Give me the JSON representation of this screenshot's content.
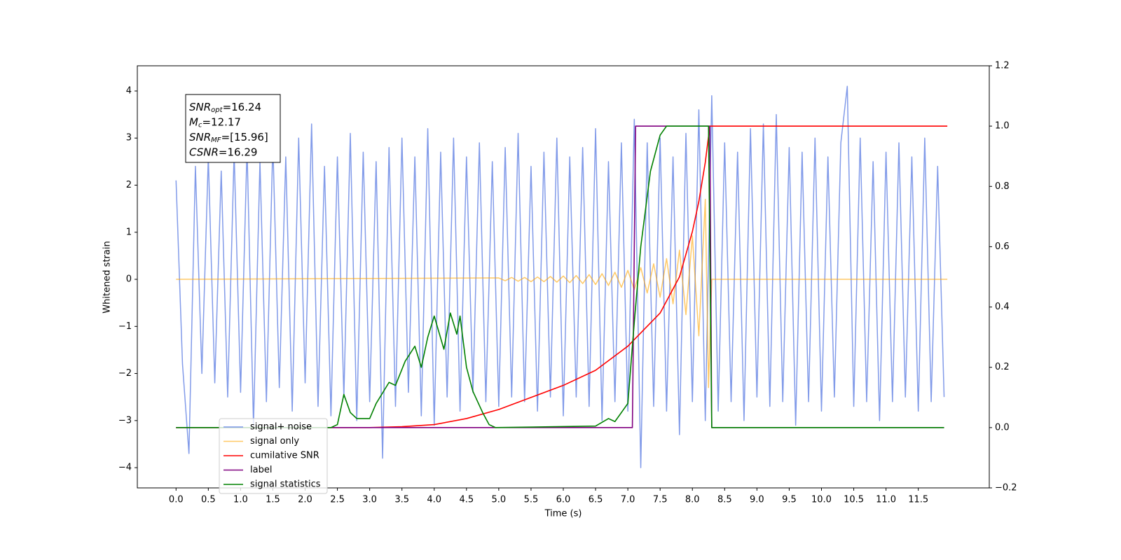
{
  "chart_data": {
    "type": "line",
    "xlabel": "Time (s)",
    "ylabel": "Whitened strain",
    "xlim": [
      -0.6,
      12.6
    ],
    "ylim": [
      -4.43,
      4.535
    ],
    "y2lim": [
      -0.2,
      1.2
    ],
    "xticks": [
      {
        "value": 0,
        "label": "0.0"
      },
      {
        "value": 0.5,
        "label": "0.5"
      },
      {
        "value": 1,
        "label": "1.0"
      },
      {
        "value": 1.5,
        "label": "1.5"
      },
      {
        "value": 2,
        "label": "2.0"
      },
      {
        "value": 2.5,
        "label": "2.5"
      },
      {
        "value": 3,
        "label": "3.0"
      },
      {
        "value": 3.5,
        "label": "3.5"
      },
      {
        "value": 4,
        "label": "4.0"
      },
      {
        "value": 4.5,
        "label": "4.5"
      },
      {
        "value": 5,
        "label": "5.0"
      },
      {
        "value": 5.5,
        "label": "5.5"
      },
      {
        "value": 6,
        "label": "6.0"
      },
      {
        "value": 6.5,
        "label": "6.5"
      },
      {
        "value": 7,
        "label": "7.0"
      },
      {
        "value": 7.5,
        "label": "7.5"
      },
      {
        "value": 8,
        "label": "8.0"
      },
      {
        "value": 8.5,
        "label": "8.5"
      },
      {
        "value": 9,
        "label": "9.0"
      },
      {
        "value": 9.5,
        "label": "9.5"
      },
      {
        "value": 10,
        "label": "10.0"
      },
      {
        "value": 10.5,
        "label": "10.5"
      },
      {
        "value": 11,
        "label": "11.0"
      },
      {
        "value": 11.5,
        "label": "11.5"
      }
    ],
    "yticks": [
      {
        "value": -4,
        "label": "−4"
      },
      {
        "value": -3,
        "label": "−3"
      },
      {
        "value": -2,
        "label": "−2"
      },
      {
        "value": -1,
        "label": "−1"
      },
      0,
      1,
      2,
      3,
      4
    ],
    "y2ticks": [
      {
        "value": -0.2,
        "label": "−0.2"
      },
      {
        "value": 0,
        "label": "0.0"
      },
      {
        "value": 0.2,
        "label": "0.2"
      },
      {
        "value": 0.4,
        "label": "0.4"
      },
      {
        "value": 0.6,
        "label": "0.6"
      },
      {
        "value": 0.8,
        "label": "0.8"
      },
      {
        "value": 1,
        "label": "1.0"
      },
      {
        "value": 1.2,
        "label": "1.2"
      }
    ],
    "legend": "lower left",
    "annotations": [
      {
        "main": "SNR",
        "sub": "opt",
        "value": "=16.24"
      },
      {
        "main": "M",
        "sub": "c",
        "value": "=12.17"
      },
      {
        "main": "SNR",
        "sub": "MF",
        "value": "=[15.96]"
      },
      {
        "main": "CSNR",
        "sub": "",
        "value": "=16.29"
      }
    ],
    "series": [
      {
        "name": "signal+ noise",
        "color": "#7b96e8",
        "axis": "y",
        "x": [
          0,
          0.1,
          0.2,
          0.3,
          0.4,
          0.5,
          0.6,
          0.7,
          0.8,
          0.9,
          1,
          1.1,
          1.2,
          1.3,
          1.4,
          1.5,
          1.6,
          1.7,
          1.8,
          1.9,
          2,
          2.1,
          2.2,
          2.3,
          2.4,
          2.5,
          2.6,
          2.7,
          2.8,
          2.9,
          3,
          3.1,
          3.2,
          3.3,
          3.4,
          3.5,
          3.6,
          3.7,
          3.8,
          3.9,
          4,
          4.1,
          4.2,
          4.3,
          4.4,
          4.5,
          4.6,
          4.7,
          4.8,
          4.9,
          5,
          5.1,
          5.2,
          5.3,
          5.4,
          5.5,
          5.6,
          5.7,
          5.8,
          5.9,
          6,
          6.1,
          6.2,
          6.3,
          6.4,
          6.5,
          6.6,
          6.7,
          6.8,
          6.9,
          7,
          7.1,
          7.2,
          7.3,
          7.4,
          7.5,
          7.6,
          7.7,
          7.8,
          7.9,
          8,
          8.1,
          8.2,
          8.3,
          8.4,
          8.5,
          8.6,
          8.7,
          8.8,
          8.9,
          9,
          9.1,
          9.2,
          9.3,
          9.4,
          9.5,
          9.6,
          9.7,
          9.8,
          9.9,
          10,
          10.1,
          10.2,
          10.3,
          10.4,
          10.5,
          10.6,
          10.7,
          10.8,
          10.9,
          11,
          11.1,
          11.2,
          11.3,
          11.4,
          11.5,
          11.6,
          11.7,
          11.8,
          11.9
        ],
        "values": [
          2.1,
          -1.8,
          -3.7,
          2.4,
          -2.0,
          2.6,
          -2.2,
          2.3,
          -2.5,
          2.7,
          -2.4,
          2.8,
          -3.1,
          2.5,
          -2.6,
          2.9,
          -2.3,
          2.6,
          -2.8,
          3.0,
          -2.2,
          3.3,
          -2.7,
          2.4,
          -2.9,
          2.6,
          -2.5,
          3.1,
          -3.0,
          2.7,
          -2.6,
          2.5,
          -3.8,
          2.8,
          -2.7,
          3.0,
          -2.4,
          2.6,
          -2.9,
          3.2,
          -3.1,
          2.7,
          -2.5,
          3.0,
          -2.8,
          2.6,
          -2.4,
          2.9,
          -2.6,
          2.5,
          -2.7,
          2.8,
          -2.5,
          3.1,
          -2.6,
          2.4,
          -2.8,
          2.7,
          -2.5,
          3.0,
          -2.9,
          2.6,
          -2.5,
          2.8,
          -2.7,
          3.2,
          -3.0,
          2.5,
          -2.6,
          2.9,
          -2.8,
          3.4,
          -4.0,
          2.9,
          -2.7,
          3.0,
          -2.8,
          2.6,
          -3.3,
          3.1,
          -2.6,
          3.6,
          -3.0,
          3.9,
          -2.8,
          2.9,
          -2.6,
          2.7,
          -3.0,
          3.2,
          -2.5,
          3.3,
          -2.7,
          3.5,
          -2.6,
          2.8,
          -3.1,
          2.7,
          -2.6,
          3.0,
          -2.8,
          2.6,
          -2.5,
          2.9,
          4.1,
          -2.7,
          3.0,
          -2.6,
          2.5,
          -3.0,
          2.7,
          -2.6,
          2.9,
          -2.5,
          2.6,
          -2.8,
          3.0,
          -2.6,
          2.4,
          -2.5
        ]
      },
      {
        "name": "signal only",
        "color": "#ffa500",
        "axis": "y",
        "x": [
          0,
          5,
          5.1,
          5.2,
          5.3,
          5.4,
          5.5,
          5.6,
          5.7,
          5.8,
          5.9,
          6,
          6.1,
          6.2,
          6.3,
          6.4,
          6.5,
          6.6,
          6.7,
          6.8,
          6.9,
          7,
          7.1,
          7.2,
          7.3,
          7.4,
          7.5,
          7.6,
          7.7,
          7.8,
          7.9,
          8,
          8.1,
          8.2,
          8.25,
          8.3,
          11.95
        ],
        "values": [
          0,
          0.03,
          -0.03,
          0.04,
          -0.04,
          0.04,
          -0.05,
          0.05,
          -0.05,
          0.06,
          -0.06,
          0.07,
          -0.07,
          0.08,
          -0.09,
          0.1,
          -0.11,
          0.12,
          -0.13,
          0.15,
          -0.17,
          0.19,
          -0.22,
          0.25,
          -0.29,
          0.33,
          -0.38,
          0.44,
          -0.52,
          0.62,
          -0.75,
          0.92,
          -1.2,
          1.7,
          -2.3,
          0,
          0
        ]
      },
      {
        "name": "cumilative SNR",
        "color": "#ff0000",
        "axis": "y2",
        "x": [
          0,
          3,
          3.5,
          4,
          4.5,
          5,
          5.5,
          6,
          6.5,
          7,
          7.5,
          7.8,
          8,
          8.1,
          8.2,
          8.27,
          11.95
        ],
        "values": [
          0,
          0,
          0.003,
          0.01,
          0.03,
          0.06,
          0.1,
          0.14,
          0.19,
          0.27,
          0.38,
          0.5,
          0.65,
          0.75,
          0.88,
          1.0,
          1.0
        ]
      },
      {
        "name": "label",
        "color": "#800080",
        "axis": "y2",
        "x": [
          0,
          7.07,
          7.12,
          8.27,
          8.3,
          11.9
        ],
        "values": [
          0,
          0,
          1,
          1,
          0,
          0
        ]
      },
      {
        "name": "signal statistics",
        "color": "#008000",
        "axis": "y2",
        "x": [
          0,
          2.4,
          2.5,
          2.6,
          2.7,
          2.8,
          3.0,
          3.1,
          3.3,
          3.4,
          3.55,
          3.7,
          3.8,
          3.9,
          4.0,
          4.15,
          4.25,
          4.35,
          4.4,
          4.5,
          4.6,
          4.75,
          4.85,
          4.95,
          6.5,
          6.7,
          6.8,
          7.0,
          7.1,
          7.2,
          7.35,
          7.5,
          7.6,
          8.25,
          8.3,
          11.9
        ],
        "values": [
          0,
          0,
          0.01,
          0.11,
          0.05,
          0.03,
          0.03,
          0.08,
          0.15,
          0.14,
          0.22,
          0.27,
          0.2,
          0.3,
          0.37,
          0.26,
          0.38,
          0.31,
          0.37,
          0.2,
          0.12,
          0.05,
          0.01,
          0,
          0.005,
          0.03,
          0.02,
          0.08,
          0.35,
          0.6,
          0.85,
          0.97,
          1.0,
          1.0,
          0,
          0
        ]
      }
    ]
  }
}
